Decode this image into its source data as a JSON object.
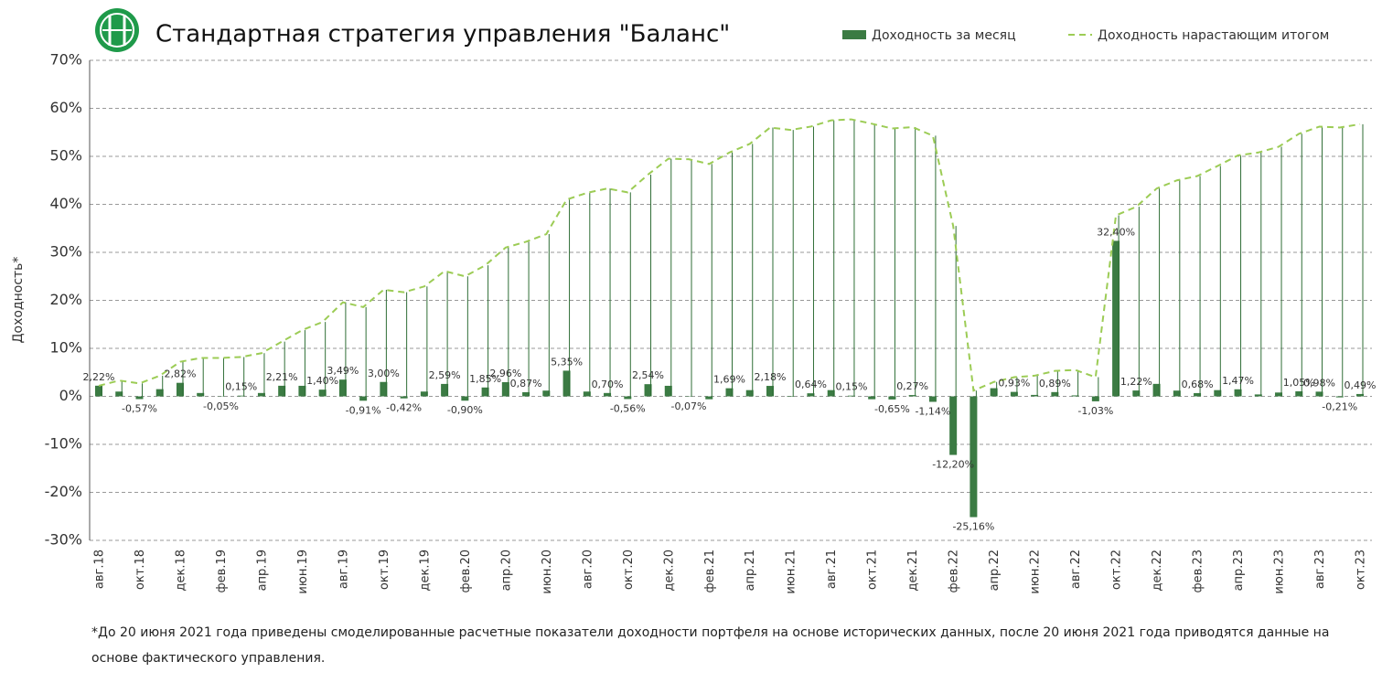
{
  "chart_data": {
    "type": "bar",
    "title": "Стандартная стратегия управления \"Баланс\"",
    "y_label": "Доходность*",
    "footnote": "*До 20 июня 2021 года приведены смоделированные расчетные показатели доходности портфеля на основе исторических данных, после 20 июня 2021 года приводятся данные на основе фактического управления.",
    "categories": [
      "авг.18",
      null,
      "окт.18",
      null,
      "дек.18",
      null,
      "фев.19",
      null,
      "апр.19",
      null,
      "июн.19",
      null,
      "авг.19",
      null,
      "окт.19",
      null,
      "дек.19",
      null,
      "фев.20",
      null,
      "апр.20",
      null,
      "июн.20",
      null,
      "авг.20",
      null,
      "окт.20",
      null,
      "дек.20",
      null,
      "фев.21",
      null,
      "апр.21",
      null,
      "июн.21",
      null,
      "авг.21",
      null,
      "окт.21",
      null,
      "дек.21",
      null,
      "фев.22",
      null,
      "апр.22",
      null,
      "июн.22",
      null,
      "авг.22",
      null,
      "окт.22",
      null,
      "дек.22",
      null,
      "фев.23",
      null,
      "апр.23",
      null,
      "июн.23",
      null,
      "авг.23",
      null,
      "окт.23"
    ],
    "series": [
      {
        "name": "Доходность за месяц",
        "type": "bar",
        "color": "#3b7b43",
        "values": [
          2.22,
          1.0,
          -0.57,
          1.5,
          2.82,
          0.7,
          -0.05,
          0.15,
          0.7,
          2.21,
          2.2,
          1.4,
          3.49,
          -0.91,
          3,
          -0.42,
          1.0,
          2.59,
          -0.9,
          1.85,
          2.96,
          0.87,
          1.2,
          5.35,
          1.0,
          0.7,
          -0.56,
          2.54,
          2.2,
          -0.07,
          -0.6,
          1.69,
          1.3,
          2.18,
          -0.1,
          0.64,
          1.3,
          0.15,
          -0.6,
          -0.65,
          0.27,
          -1.14,
          -12.2,
          -25.16,
          1.7,
          0.93,
          0.3,
          0.89,
          0.2,
          -1.03,
          32.4,
          1.22,
          2.6,
          1.2,
          0.68,
          1.3,
          1.47,
          0.4,
          0.8,
          1.05,
          0.98,
          -0.21,
          0.49
        ],
        "value_labels": [
          "2,22%",
          null,
          "-0,57%",
          null,
          "2,82%",
          null,
          "-0,05%",
          "0,15%",
          null,
          "2,21%",
          null,
          "1,40%",
          "3,49%",
          "-0,91%",
          "3,00%",
          "-0,42%",
          null,
          "2,59%",
          "-0,90%",
          "1,85%",
          "2,96%",
          "0,87%",
          null,
          "5,35%",
          null,
          "0,70%",
          "-0,56%",
          "2,54%",
          null,
          "-0,07%",
          null,
          "1,69%",
          null,
          "2,18%",
          null,
          "0,64%",
          null,
          "0,15%",
          null,
          "-0,65%",
          "0,27%",
          "-1,14%",
          "-12,20%",
          "-25,16%",
          null,
          "0,93%",
          null,
          "0,89%",
          null,
          "-1,03%",
          "32,40%",
          "1,22%",
          null,
          null,
          "0,68%",
          null,
          "1,47%",
          null,
          null,
          "1,05%",
          "0,98%",
          "-0,21%",
          "0,49%"
        ]
      },
      {
        "name": "Доходность нарастающим итогом",
        "type": "line",
        "color": "#9ccc55",
        "line_style": "dashed",
        "drop_lines": true,
        "drop_color": "#2f6e36",
        "values": [
          2.2,
          3.3,
          2.7,
          4.3,
          7.2,
          8.0,
          8.0,
          8.2,
          9.0,
          11.4,
          13.8,
          15.5,
          19.6,
          18.6,
          22.2,
          21.7,
          22.9,
          26.1,
          25.0,
          27.3,
          31.0,
          32.2,
          33.8,
          41.0,
          42.4,
          43.3,
          42.5,
          46.2,
          49.5,
          49.4,
          48.4,
          50.8,
          52.6,
          56.0,
          55.5,
          56.2,
          57.5,
          57.7,
          56.8,
          55.8,
          56.1,
          54.3,
          35.5,
          1.2,
          3.0,
          4.0,
          4.3,
          5.3,
          5.5,
          4.0,
          37.7,
          39.5,
          43.3,
          45.0,
          45.9,
          48.0,
          50.2,
          50.8,
          52.0,
          54.7,
          56.2,
          56.0,
          56.7
        ]
      }
    ],
    "ylim": [
      -30,
      70
    ],
    "yticks": [
      {
        "value": -30,
        "label": "-30%"
      },
      {
        "value": -20,
        "label": "-20%"
      },
      {
        "value": -10,
        "label": "-10%"
      },
      {
        "value": 0,
        "label": "0%"
      },
      {
        "value": 10,
        "label": "10%"
      },
      {
        "value": 20,
        "label": "20%"
      },
      {
        "value": 30,
        "label": "30%"
      },
      {
        "value": 40,
        "label": "40%"
      },
      {
        "value": 50,
        "label": "50%"
      },
      {
        "value": 60,
        "label": "60%"
      },
      {
        "value": 70,
        "label": "70%"
      }
    ],
    "grid": true,
    "legend": "top-right"
  }
}
